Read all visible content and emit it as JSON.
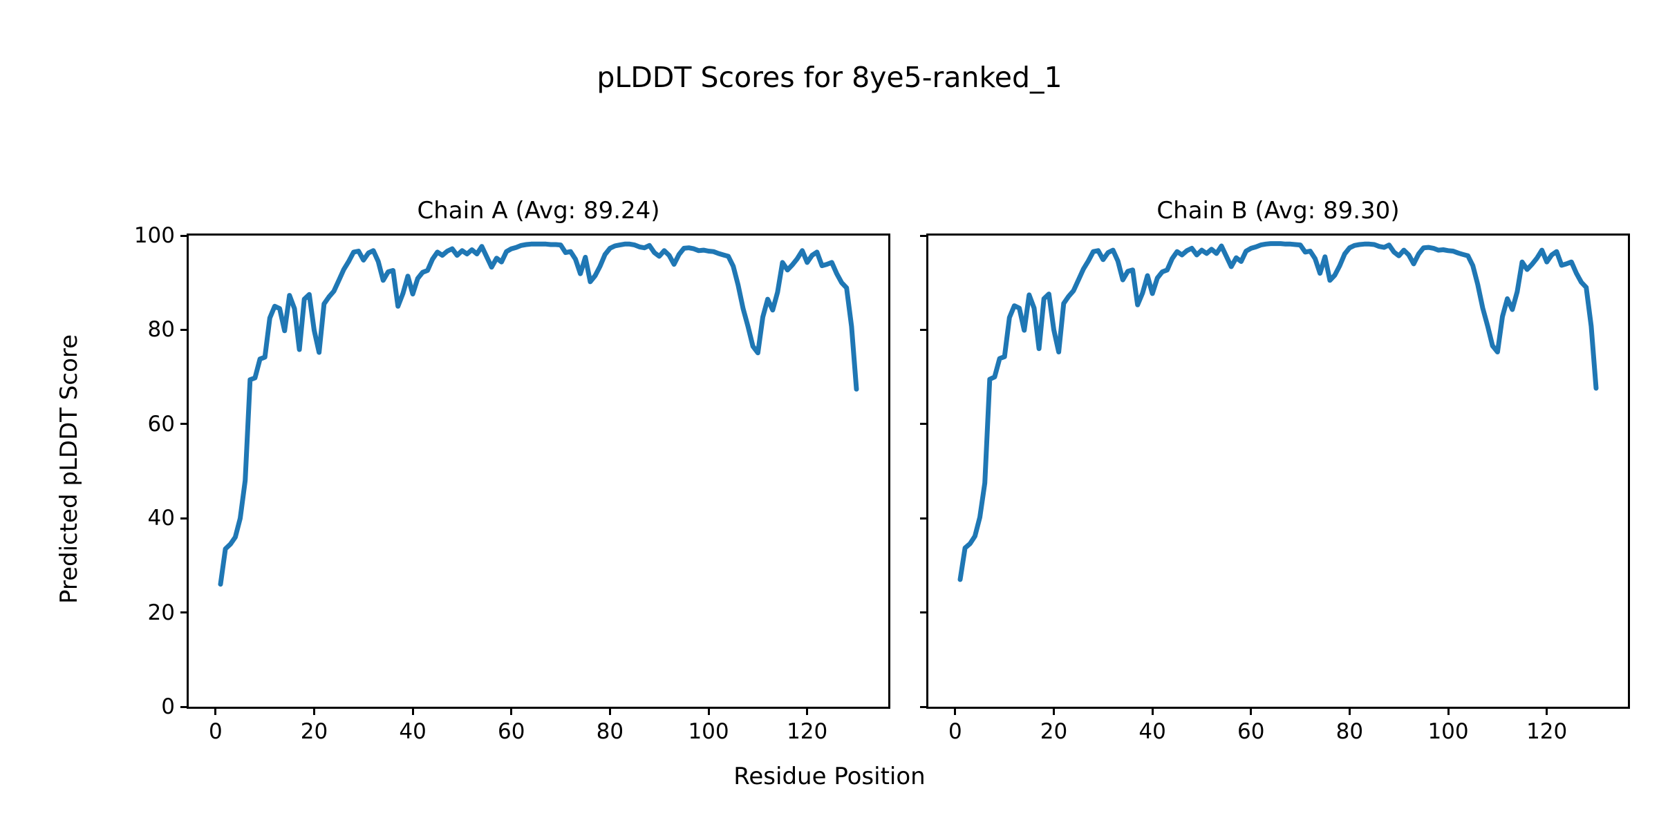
{
  "figure": {
    "title": "pLDDT Scores for 8ye5-ranked_1",
    "background_color": "#ffffff",
    "text_color": "#000000",
    "line_color": "#1f77b4"
  },
  "labels": {
    "xlabel": "Residue Position",
    "ylabel": "Predicted pLDDT Score"
  },
  "chart_data": [
    {
      "type": "line",
      "title": "Chain A (Avg: 89.24)",
      "avg": 89.24,
      "xlabel": "Residue Position",
      "ylabel": "Predicted pLDDT Score",
      "xlim": [
        -5.45,
        136.45
      ],
      "ylim": [
        0,
        100
      ],
      "xticks": [
        0,
        20,
        40,
        60,
        80,
        100,
        120
      ],
      "yticks": [
        0,
        20,
        40,
        60,
        80,
        100
      ],
      "show_ytick_labels": true,
      "grid": false,
      "legend": "none",
      "series": [
        {
          "name": "Chain A pLDDT",
          "color": "#1f77b4",
          "x_start": 1,
          "y": [
            26.0,
            33.5,
            34.5,
            36.0,
            40.0,
            48.0,
            69.4,
            69.8,
            73.8,
            74.2,
            82.5,
            85.0,
            84.5,
            79.8,
            87.3,
            84.5,
            75.8,
            86.5,
            87.5,
            79.9,
            75.2,
            85.5,
            87.0,
            88.2,
            90.5,
            92.8,
            94.5,
            96.5,
            96.7,
            94.8,
            96.3,
            96.8,
            94.5,
            90.5,
            92.3,
            92.6,
            85.0,
            87.7,
            91.4,
            87.6,
            90.9,
            92.2,
            92.6,
            95.0,
            96.5,
            95.8,
            96.7,
            97.2,
            95.8,
            96.8,
            96.1,
            97.0,
            96.1,
            97.7,
            95.5,
            93.3,
            95.2,
            94.4,
            96.6,
            97.2,
            97.5,
            97.9,
            98.1,
            98.2,
            98.2,
            98.2,
            98.2,
            98.1,
            98.1,
            98.0,
            96.4,
            96.6,
            95.0,
            91.9,
            95.4,
            90.2,
            91.5,
            93.5,
            96.0,
            97.3,
            97.8,
            98.0,
            98.2,
            98.2,
            98.0,
            97.6,
            97.4,
            97.9,
            96.4,
            95.6,
            96.8,
            95.8,
            93.9,
            96.0,
            97.3,
            97.4,
            97.2,
            96.8,
            96.9,
            96.7,
            96.6,
            96.2,
            95.9,
            95.6,
            93.5,
            89.5,
            84.5,
            80.7,
            76.5,
            75.1,
            82.7,
            86.5,
            84.2,
            88.0,
            94.3,
            92.7,
            93.8,
            95.1,
            96.8,
            94.3,
            95.8,
            96.5,
            93.6,
            93.9,
            94.3,
            91.9,
            90.0,
            88.9,
            80.7,
            67.4
          ]
        }
      ]
    },
    {
      "type": "line",
      "title": "Chain B (Avg: 89.30)",
      "avg": 89.3,
      "xlabel": "Residue Position",
      "ylabel": "Predicted pLDDT Score",
      "xlim": [
        -5.45,
        136.45
      ],
      "ylim": [
        0,
        100
      ],
      "xticks": [
        0,
        20,
        40,
        60,
        80,
        100,
        120
      ],
      "yticks": [
        0,
        20,
        40,
        60,
        80,
        100
      ],
      "show_ytick_labels": false,
      "grid": false,
      "legend": "none",
      "series": [
        {
          "name": "Chain B pLDDT",
          "color": "#1f77b4",
          "x_start": 1,
          "y": [
            27.0,
            33.7,
            34.6,
            36.2,
            40.2,
            47.5,
            69.5,
            70.0,
            73.9,
            74.3,
            82.6,
            85.1,
            84.6,
            79.9,
            87.4,
            84.6,
            76.0,
            86.6,
            87.6,
            80.0,
            75.3,
            85.6,
            87.1,
            88.3,
            90.6,
            92.9,
            94.6,
            96.6,
            96.8,
            94.9,
            96.4,
            96.9,
            94.6,
            90.6,
            92.4,
            92.7,
            85.3,
            87.8,
            91.5,
            87.7,
            91.0,
            92.3,
            92.7,
            95.1,
            96.6,
            95.9,
            96.8,
            97.3,
            95.9,
            96.9,
            96.2,
            97.1,
            96.2,
            97.8,
            95.6,
            93.4,
            95.3,
            94.5,
            96.7,
            97.3,
            97.6,
            98.0,
            98.2,
            98.3,
            98.3,
            98.3,
            98.2,
            98.2,
            98.1,
            98.0,
            96.5,
            96.7,
            95.1,
            92.0,
            95.5,
            90.5,
            91.6,
            93.6,
            96.1,
            97.4,
            97.9,
            98.1,
            98.2,
            98.2,
            98.1,
            97.7,
            97.5,
            98.0,
            96.5,
            95.7,
            96.9,
            95.9,
            94.0,
            96.1,
            97.4,
            97.5,
            97.3,
            96.9,
            97.0,
            96.8,
            96.7,
            96.3,
            96.0,
            95.7,
            93.6,
            89.6,
            84.6,
            80.8,
            76.6,
            75.3,
            82.8,
            86.6,
            84.3,
            88.1,
            94.4,
            92.8,
            93.9,
            95.2,
            96.9,
            94.4,
            95.9,
            96.6,
            93.7,
            94.0,
            94.4,
            92.0,
            90.1,
            89.0,
            80.8,
            67.6
          ]
        }
      ]
    }
  ]
}
